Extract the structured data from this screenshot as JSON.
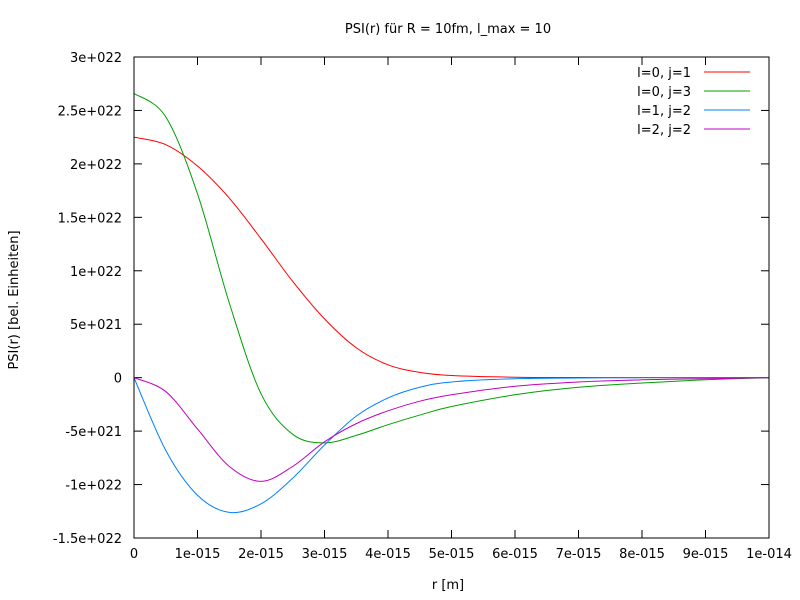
{
  "chart_data": {
    "type": "line",
    "title": "PSI(r) für R = 10fm, l_max = 10",
    "xlabel": "r [m]",
    "ylabel": "PSI(r) [bel. Einheiten]",
    "xlim": [
      0,
      1e-14
    ],
    "ylim": [
      -1.5e+22,
      3e+22
    ],
    "xticks": [
      0,
      1e-15,
      2e-15,
      3e-15,
      4e-15,
      5e-15,
      6e-15,
      7e-15,
      8e-15,
      9e-15,
      1e-14
    ],
    "xtick_labels": [
      "0",
      "1e-015",
      "2e-015",
      "3e-015",
      "4e-015",
      "5e-015",
      "6e-015",
      "7e-015",
      "8e-015",
      "9e-015",
      "1e-014"
    ],
    "yticks": [
      3e+22,
      2.5e+22,
      2e+22,
      1.5e+22,
      1e+22,
      5e+21,
      0,
      -5e+21,
      -1e+22,
      -1.5e+22
    ],
    "ytick_labels": [
      "3e+022",
      "2.5e+022",
      "2e+022",
      "1.5e+022",
      "1e+022",
      "5e+021",
      "0",
      "-5e+021",
      "-1e+022",
      "-1.5e+022"
    ],
    "grid": false,
    "legend_position": "top-right",
    "x": [
      0,
      5e-16,
      1e-15,
      1.5e-15,
      2e-15,
      2.5e-15,
      3e-15,
      3.5e-15,
      4e-15,
      4.5e-15,
      5e-15,
      6e-15,
      7e-15,
      8e-15,
      9e-15,
      1e-14
    ],
    "series": [
      {
        "name": "l=0, j=1",
        "color": "#ff0000",
        "values": [
          2.25e+22,
          2.18e+22,
          1.98e+22,
          1.68e+22,
          1.3e+22,
          9e+21,
          5.5e+21,
          2.8e+21,
          1.2e+21,
          5e+20,
          2e+20,
          4e+19,
          1e+19,
          0,
          0,
          0
        ]
      },
      {
        "name": "l=0, j=3",
        "color": "#00a000",
        "values": [
          2.66e+22,
          2.44e+22,
          1.72e+22,
          7e+21,
          -1.5e+21,
          -5.3e+21,
          -6.1e+21,
          -5.4e+21,
          -4.4e+21,
          -3.5e+21,
          -2.7e+21,
          -1.6e+21,
          -9e+20,
          -5e+20,
          -2e+20,
          0
        ]
      },
      {
        "name": "l=1, j=2",
        "color": "#0080ff",
        "values": [
          0,
          -6.8e+21,
          -1.1e+22,
          -1.26e+22,
          -1.18e+22,
          -9.4e+21,
          -6.3e+21,
          -3.6e+21,
          -1.9e+21,
          -9e+20,
          -4e+20,
          -1e+20,
          -3e+19,
          0,
          0,
          0
        ]
      },
      {
        "name": "l=2, j=2",
        "color": "#c000c0",
        "values": [
          0,
          -1.3e+21,
          -4.8e+21,
          -8.3e+21,
          -9.7e+21,
          -8.3e+21,
          -6e+21,
          -4.3e+21,
          -3.1e+21,
          -2.2e+21,
          -1.6e+21,
          -8e+20,
          -4e+20,
          -2e+20,
          -1e+20,
          0
        ]
      }
    ]
  }
}
